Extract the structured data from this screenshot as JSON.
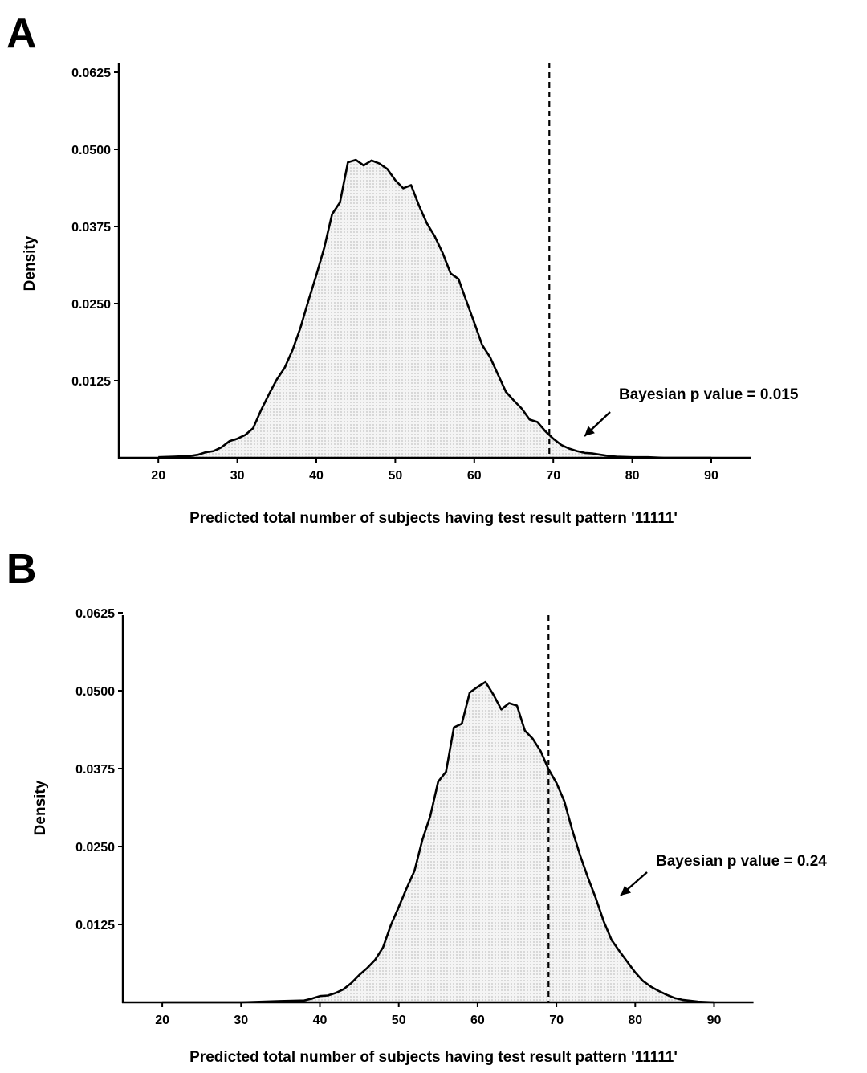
{
  "chart_data": [
    {
      "panel": "A",
      "type": "area",
      "xlabel": "Predicted total number of subjects having test result pattern '11111'",
      "ylabel": "Density",
      "xlim": [
        15,
        95
      ],
      "ylim": [
        0,
        0.0625
      ],
      "xticks": [
        "20",
        "30",
        "40",
        "50",
        "60",
        "70",
        "80",
        "90"
      ],
      "yticks": [
        "0.0125",
        "0.0250",
        "0.0375",
        "0.0500",
        "0.0625"
      ],
      "reference_line_x": 69.5,
      "annotation": "Bayesian p value = 0.015",
      "x": [
        20,
        22,
        24,
        25,
        26,
        27,
        28,
        29,
        30,
        31,
        32,
        33,
        34,
        35,
        36,
        37,
        38,
        39,
        40,
        41,
        42,
        43,
        44,
        45,
        46,
        47,
        48,
        49,
        50,
        51,
        52,
        53,
        54,
        55,
        56,
        57,
        58,
        59,
        60,
        61,
        62,
        63,
        64,
        65,
        66,
        67,
        68,
        69,
        70,
        71,
        72,
        73,
        74,
        75,
        76,
        77,
        78,
        80,
        82,
        84,
        86,
        88,
        90
      ],
      "y": [
        0.0001,
        0.0002,
        0.0003,
        0.0005,
        0.0009,
        0.0011,
        0.0017,
        0.0027,
        0.0031,
        0.0037,
        0.0048,
        0.0077,
        0.0103,
        0.0127,
        0.0146,
        0.0175,
        0.0211,
        0.0255,
        0.0296,
        0.034,
        0.0395,
        0.0414,
        0.0479,
        0.0483,
        0.0474,
        0.0482,
        0.0477,
        0.0468,
        0.045,
        0.0437,
        0.0442,
        0.0409,
        0.038,
        0.0359,
        0.0332,
        0.0299,
        0.029,
        0.0254,
        0.0219,
        0.0183,
        0.0163,
        0.0135,
        0.0107,
        0.0093,
        0.008,
        0.0062,
        0.0058,
        0.0043,
        0.0031,
        0.0021,
        0.0015,
        0.0011,
        0.0008,
        0.0007,
        0.0005,
        0.0003,
        0.0002,
        0.0001,
        0.0001,
        0.0,
        0.0,
        0.0,
        0.0
      ]
    },
    {
      "panel": "B",
      "type": "area",
      "xlabel": "Predicted total number of subjects having test result pattern '11111'",
      "ylabel": "Density",
      "xlim": [
        15,
        95
      ],
      "ylim": [
        0,
        0.0625
      ],
      "xticks": [
        "20",
        "30",
        "40",
        "50",
        "60",
        "70",
        "80",
        "90"
      ],
      "yticks": [
        "0.0125",
        "0.0250",
        "0.0375",
        "0.0500",
        "0.0625"
      ],
      "reference_line_x": 69,
      "annotation": "Bayesian p value = 0.24",
      "x": [
        20,
        30,
        35,
        38,
        39,
        40,
        41,
        42,
        43,
        44,
        45,
        46,
        47,
        48,
        49,
        50,
        51,
        52,
        53,
        54,
        55,
        56,
        57,
        58,
        59,
        60,
        61,
        62,
        63,
        64,
        65,
        66,
        67,
        68,
        69,
        70,
        71,
        72,
        73,
        74,
        75,
        76,
        77,
        78,
        79,
        80,
        81,
        82,
        83,
        84,
        85,
        86,
        88,
        90
      ],
      "y": [
        0.0,
        0.0,
        0.0002,
        0.0003,
        0.0006,
        0.001,
        0.0011,
        0.0015,
        0.0021,
        0.0031,
        0.0044,
        0.0055,
        0.0068,
        0.0088,
        0.0124,
        0.0153,
        0.0183,
        0.0211,
        0.0261,
        0.0299,
        0.0354,
        0.037,
        0.0441,
        0.0447,
        0.0497,
        0.0506,
        0.0514,
        0.0494,
        0.047,
        0.048,
        0.0476,
        0.0436,
        0.0423,
        0.0403,
        0.0374,
        0.0352,
        0.0323,
        0.0277,
        0.0236,
        0.02,
        0.0167,
        0.013,
        0.01,
        0.0082,
        0.0065,
        0.0048,
        0.0034,
        0.0025,
        0.0018,
        0.0012,
        0.0007,
        0.0004,
        0.0001,
        0.0
      ]
    }
  ]
}
